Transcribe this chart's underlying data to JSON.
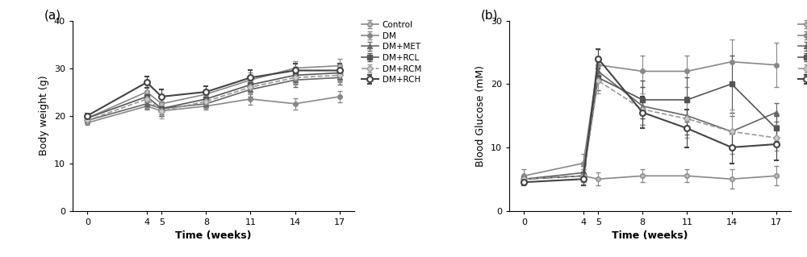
{
  "time_points": [
    0,
    4,
    5,
    8,
    11,
    14,
    17
  ],
  "bw_means": {
    "Control": [
      19.5,
      25.0,
      22.5,
      24.5,
      27.5,
      30.0,
      30.5
    ],
    "DM": [
      18.5,
      22.0,
      21.0,
      22.0,
      23.5,
      22.5,
      24.0
    ],
    "DM+MET": [
      19.0,
      22.5,
      21.5,
      22.5,
      25.5,
      27.5,
      28.0
    ],
    "DM+RCL": [
      19.5,
      24.0,
      21.5,
      23.5,
      26.5,
      28.5,
      29.0
    ],
    "DM+RCM": [
      19.0,
      23.5,
      21.0,
      23.0,
      26.0,
      28.0,
      28.5
    ],
    "DM+RCH": [
      20.0,
      27.0,
      24.0,
      25.0,
      28.0,
      29.5,
      29.5
    ]
  },
  "bw_errors": {
    "Control": [
      0.5,
      1.0,
      1.2,
      1.0,
      1.5,
      1.5,
      1.5
    ],
    "DM": [
      0.4,
      0.8,
      1.0,
      0.8,
      1.2,
      1.2,
      1.2
    ],
    "DM+MET": [
      0.5,
      1.0,
      1.2,
      0.8,
      1.5,
      1.5,
      1.5
    ],
    "DM+RCL": [
      0.5,
      1.0,
      1.5,
      1.0,
      1.5,
      1.8,
      1.8
    ],
    "DM+RCM": [
      0.5,
      1.0,
      1.5,
      1.0,
      1.5,
      1.5,
      1.5
    ],
    "DM+RCH": [
      0.5,
      1.2,
      1.5,
      1.2,
      1.5,
      1.5,
      1.5
    ]
  },
  "bg_means": {
    "Control": [
      5.0,
      5.5,
      5.0,
      5.5,
      5.5,
      5.0,
      5.5
    ],
    "DM": [
      5.5,
      7.5,
      23.0,
      22.0,
      22.0,
      23.5,
      23.0
    ],
    "DM+MET": [
      5.0,
      6.0,
      22.0,
      16.5,
      15.0,
      12.5,
      15.5
    ],
    "DM+RCL": [
      5.0,
      5.5,
      21.0,
      17.5,
      17.5,
      20.0,
      13.0
    ],
    "DM+RCM": [
      5.0,
      5.5,
      20.5,
      16.0,
      14.5,
      12.5,
      11.5
    ],
    "DM+RCH": [
      4.5,
      5.0,
      24.0,
      15.5,
      13.0,
      10.0,
      10.5
    ]
  },
  "bg_errors": {
    "Control": [
      0.5,
      1.5,
      1.0,
      1.0,
      1.0,
      1.5,
      1.5
    ],
    "DM": [
      1.0,
      1.5,
      2.5,
      2.5,
      2.5,
      3.5,
      3.5
    ],
    "DM+MET": [
      0.5,
      1.0,
      1.5,
      3.0,
      3.0,
      2.5,
      1.5
    ],
    "DM+RCL": [
      0.5,
      1.0,
      2.0,
      3.0,
      3.5,
      4.5,
      2.0
    ],
    "DM+RCM": [
      0.5,
      1.0,
      2.0,
      2.5,
      3.0,
      3.5,
      2.0
    ],
    "DM+RCH": [
      0.5,
      1.0,
      1.5,
      2.5,
      3.0,
      2.5,
      2.5
    ]
  },
  "series_styles": {
    "Control": {
      "color": "#888888",
      "marker": "o",
      "linestyle": "-",
      "markersize": 4,
      "linewidth": 1.2,
      "mfc": "#bbbbbb",
      "mew": 1.0
    },
    "DM": {
      "color": "#888888",
      "marker": "o",
      "linestyle": "-",
      "markersize": 4,
      "linewidth": 1.2,
      "mfc": "#888888",
      "mew": 1.0
    },
    "DM+MET": {
      "color": "#666666",
      "marker": "^",
      "linestyle": "-",
      "markersize": 4,
      "linewidth": 1.2,
      "mfc": "#666666",
      "mew": 1.0
    },
    "DM+RCL": {
      "color": "#555555",
      "marker": "s",
      "linestyle": "-",
      "markersize": 4,
      "linewidth": 1.2,
      "mfc": "#555555",
      "mew": 1.0
    },
    "DM+RCM": {
      "color": "#999999",
      "marker": "D",
      "linestyle": "--",
      "markersize": 4,
      "linewidth": 1.2,
      "mfc": "#cccccc",
      "mew": 1.0
    },
    "DM+RCH": {
      "color": "#444444",
      "marker": "o",
      "linestyle": "-",
      "markersize": 5,
      "linewidth": 1.5,
      "mfc": "#ffffff",
      "mew": 1.5
    }
  },
  "panel_a": {
    "ylabel": "Body weight (g)",
    "xlabel": "Time (weeks)",
    "ylim": [
      0,
      40
    ],
    "yticks": [
      0,
      10,
      20,
      30,
      40
    ],
    "xticks": [
      0,
      4,
      5,
      8,
      11,
      14,
      17
    ],
    "label": "(a)"
  },
  "panel_b": {
    "ylabel": "Blood Glucose (mM)",
    "xlabel": "Time (weeks)",
    "ylim": [
      0,
      30
    ],
    "yticks": [
      0,
      10,
      20,
      30
    ],
    "xticks": [
      0,
      4,
      5,
      8,
      11,
      14,
      17
    ],
    "label": "(b)"
  },
  "legend_order": [
    "Control",
    "DM",
    "DM+MET",
    "DM+RCL",
    "DM+RCM",
    "DM+RCH"
  ],
  "background_color": "#ffffff",
  "fontsize_label": 9,
  "fontsize_tick": 8,
  "fontsize_legend": 7.5,
  "fontsize_panel": 11
}
